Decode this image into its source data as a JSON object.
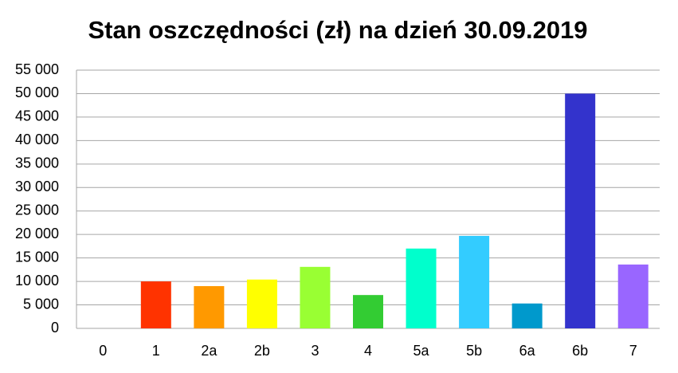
{
  "chart_data": {
    "type": "bar",
    "title": "Stan oszczędności (zł) na dzień 30.09.2019",
    "categories": [
      "0",
      "1",
      "2a",
      "2b",
      "3",
      "4",
      "5a",
      "5b",
      "6a",
      "6b",
      "7"
    ],
    "values": [
      0,
      10000,
      9000,
      10400,
      13100,
      7100,
      17000,
      19700,
      5300,
      50000,
      13600
    ],
    "colors": [
      "#ff0000",
      "#ff3300",
      "#ff9900",
      "#ffff00",
      "#99ff33",
      "#33cc33",
      "#00ffcc",
      "#33ccff",
      "#0099cc",
      "#3333cc",
      "#9966ff"
    ],
    "ylim": [
      0,
      55000
    ],
    "yticks": [
      0,
      {
        "value": 5000,
        "label": "5 000"
      },
      {
        "value": 10000,
        "label": "10 000"
      },
      {
        "value": 15000,
        "label": "15 000"
      },
      {
        "value": 20000,
        "label": "20 000"
      },
      {
        "value": 25000,
        "label": "25 000"
      },
      {
        "value": 30000,
        "label": "30 000"
      },
      {
        "value": 35000,
        "label": "35 000"
      },
      {
        "value": 40000,
        "label": "40 000"
      },
      {
        "value": 45000,
        "label": "45 000"
      },
      {
        "value": 50000,
        "label": "50 000"
      },
      {
        "value": 55000,
        "label": "55 000"
      }
    ],
    "grid": true
  }
}
